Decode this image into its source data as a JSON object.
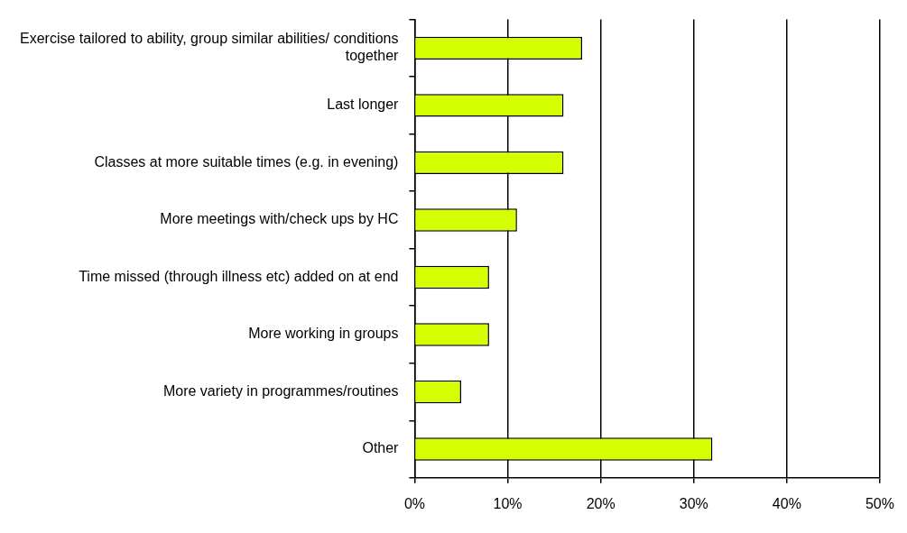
{
  "chart_data": {
    "type": "bar",
    "orientation": "horizontal",
    "categories": [
      "Exercise tailored to ability, group similar abilities/ conditions together",
      "Last longer",
      "Classes at more suitable times (e.g. in evening)",
      "More meetings with/check ups by HC",
      "Time missed (through illness etc) added on at end",
      "More working in groups",
      "More variety in programmes/routines",
      "Other"
    ],
    "values": [
      18,
      16,
      16,
      11,
      8,
      8,
      5,
      32
    ],
    "color": "#d4ff00",
    "xlim": [
      0,
      50
    ],
    "xticks": [
      {
        "value": 0,
        "label": "0%"
      },
      {
        "value": 10,
        "label": "10%"
      },
      {
        "value": 20,
        "label": "20%"
      },
      {
        "value": 30,
        "label": "30%"
      },
      {
        "value": 40,
        "label": "40%"
      },
      {
        "value": 50,
        "label": "50%"
      }
    ],
    "grid": "x",
    "legend": false
  }
}
